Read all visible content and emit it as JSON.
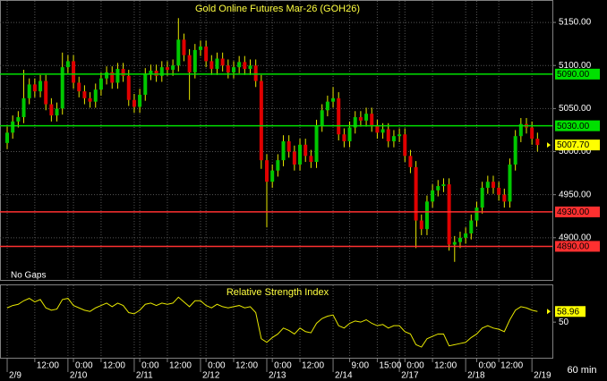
{
  "chart_data": [
    {
      "type": "candlestick",
      "title": "Gold Online Futures Mar-26 (GOH26)",
      "note": "No Gaps",
      "up_color": "#00c800",
      "down_color": "#e00000",
      "wick_color": "#e8e800",
      "xlim": [
        -1.3,
        98.7
      ],
      "ylim": [
        4851,
        5175
      ],
      "yticks": [
        {
          "value": 4900,
          "label": "4900.00"
        },
        {
          "value": 4950,
          "label": "4950.00"
        },
        {
          "value": 5000,
          "label": "5000.00"
        },
        {
          "value": 5050,
          "label": "5050.00"
        },
        {
          "value": 5100,
          "label": "5100.00"
        },
        {
          "value": 5150,
          "label": "5150.00"
        }
      ],
      "grid": true,
      "levels": [
        {
          "value": 5090,
          "label": "5090.00",
          "color": "#00e000"
        },
        {
          "value": 5030,
          "label": "5030.00",
          "color": "#00e000"
        },
        {
          "value": 4930,
          "label": "4930.00",
          "color": "#ff3030"
        },
        {
          "value": 4890,
          "label": "4890.00",
          "color": "#ff3030"
        }
      ],
      "current": {
        "value": 5007.7,
        "label": "5007.70",
        "color": "#ffff00"
      },
      "open": [
        5010,
        5022,
        5035,
        5040,
        5062,
        5078,
        5070,
        5082,
        5055,
        5042,
        5050,
        5098,
        5105,
        5080,
        5070,
        5062,
        5058,
        5072,
        5085,
        5092,
        5080,
        5096,
        5088,
        5060,
        5052,
        5066,
        5090,
        5094,
        5088,
        5098,
        5095,
        5100,
        5130,
        5112,
        5092,
        5118,
        5122,
        5105,
        5096,
        5108,
        5100,
        5092,
        5098,
        5104,
        5096,
        5100,
        5082,
        4990,
        4965,
        4978,
        4990,
        5012,
        5000,
        4985,
        5008,
        4995,
        4988,
        5030,
        5048,
        5058,
        5062,
        5020,
        5012,
        5028,
        5040,
        5036,
        5044,
        5030,
        5022,
        5026,
        5012,
        5018,
        5020,
        4995,
        4982,
        4920,
        4910,
        4942,
        4955,
        4960,
        4962,
        4892,
        4895,
        4900,
        4905,
        4920,
        4935,
        4958,
        4965,
        4958,
        4950,
        4942,
        4985,
        5018,
        5032,
        5028,
        5015
      ],
      "high": [
        5029,
        5042,
        5047,
        5095,
        5085,
        5085,
        5089,
        5089,
        5062,
        5057,
        5115,
        5112,
        5112,
        5087,
        5077,
        5069,
        5079,
        5092,
        5099,
        5099,
        5103,
        5103,
        5095,
        5067,
        5073,
        5097,
        5101,
        5101,
        5105,
        5105,
        5107,
        5155,
        5137,
        5119,
        5125,
        5129,
        5129,
        5112,
        5115,
        5115,
        5107,
        5105,
        5111,
        5111,
        5107,
        5107,
        5089,
        4997,
        4985,
        4997,
        5019,
        5019,
        5007,
        5015,
        5015,
        5002,
        5037,
        5055,
        5065,
        5075,
        5069,
        5027,
        5035,
        5047,
        5047,
        5051,
        5051,
        5037,
        5033,
        5033,
        5025,
        5027,
        5027,
        5002,
        4989,
        4927,
        4949,
        4962,
        4967,
        4969,
        4969,
        4902,
        4907,
        4912,
        4927,
        4942,
        4965,
        4972,
        4972,
        4965,
        4957,
        4992,
        5025,
        5039,
        5039,
        5035,
        5022
      ],
      "low": [
        5003,
        5015,
        5028,
        5033,
        5055,
        5063,
        5063,
        5048,
        5035,
        5035,
        5043,
        5091,
        5073,
        5063,
        5055,
        5051,
        5051,
        5065,
        5078,
        5073,
        5073,
        5081,
        5053,
        5045,
        5045,
        5059,
        5083,
        5081,
        5081,
        5088,
        5088,
        5093,
        5105,
        5060,
        5085,
        5111,
        5098,
        5089,
        5089,
        5093,
        5085,
        5085,
        5091,
        5089,
        5089,
        5075,
        4980,
        4912,
        4958,
        4971,
        4983,
        4993,
        4978,
        4978,
        4988,
        4981,
        4981,
        5023,
        5041,
        5051,
        5013,
        5005,
        5005,
        5021,
        5029,
        5029,
        5023,
        5015,
        5015,
        5005,
        5005,
        5011,
        4988,
        4975,
        4888,
        4903,
        4903,
        4935,
        4948,
        4953,
        4885,
        4872,
        4888,
        4893,
        4898,
        4913,
        4928,
        4951,
        4951,
        4943,
        4935,
        4935,
        4978,
        5011,
        5021,
        5008,
        5000
      ],
      "close": [
        5022,
        5035,
        5040,
        5062,
        5078,
        5070,
        5082,
        5055,
        5042,
        5050,
        5098,
        5105,
        5080,
        5070,
        5062,
        5058,
        5072,
        5085,
        5092,
        5080,
        5096,
        5088,
        5060,
        5052,
        5066,
        5090,
        5094,
        5088,
        5098,
        5095,
        5100,
        5130,
        5112,
        5092,
        5118,
        5122,
        5105,
        5096,
        5108,
        5100,
        5092,
        5098,
        5104,
        5096,
        5100,
        5082,
        4990,
        4965,
        4978,
        4990,
        5012,
        5000,
        4985,
        5008,
        4995,
        4988,
        5030,
        5048,
        5058,
        5062,
        5020,
        5012,
        5028,
        5040,
        5036,
        5044,
        5030,
        5022,
        5026,
        5012,
        5018,
        5020,
        4995,
        4982,
        4920,
        4910,
        4942,
        4955,
        4960,
        4962,
        4892,
        4895,
        4900,
        4905,
        4920,
        4935,
        4958,
        4965,
        4958,
        4950,
        4942,
        4985,
        5018,
        5032,
        5028,
        5015,
        5007.7
      ]
    },
    {
      "type": "line",
      "title": "Relative Strength Index",
      "color": "#e8e800",
      "interval": "60 min",
      "xlim": [
        -1.3,
        98.7
      ],
      "ylim": [
        20,
        81
      ],
      "yticks": [
        50
      ],
      "last_value": {
        "value": 58.96,
        "label": "58.96",
        "color": "#ffff00"
      },
      "xticks": [
        {
          "value": 5,
          "label": "12:00"
        },
        {
          "value": 12,
          "label": "0:00"
        },
        {
          "value": 17,
          "label": "12:00"
        },
        {
          "value": 24,
          "label": "0:00"
        },
        {
          "value": 29,
          "label": "12:00"
        },
        {
          "value": 36,
          "label": "0:00"
        },
        {
          "value": 41,
          "label": "12:00"
        },
        {
          "value": 48,
          "label": "0:00"
        },
        {
          "value": 53,
          "label": "12:00"
        },
        {
          "value": 62,
          "label": "9:00"
        },
        {
          "value": 67,
          "label": "15:00"
        },
        {
          "value": 72,
          "label": "0:00"
        },
        {
          "value": 77,
          "label": "12:00"
        },
        {
          "value": 85,
          "label": "0:00"
        },
        {
          "value": 89,
          "label": "12:00"
        }
      ],
      "date_ticks": [
        {
          "value": 0,
          "label": "2/9"
        },
        {
          "value": 11,
          "label": "2/10"
        },
        {
          "value": 23,
          "label": "2/11"
        },
        {
          "value": 35,
          "label": "2/12"
        },
        {
          "value": 47,
          "label": "2/13"
        },
        {
          "value": 59,
          "label": "2/14"
        },
        {
          "value": 71,
          "label": "2/17"
        },
        {
          "value": 83,
          "label": "2/18"
        },
        {
          "value": 95,
          "label": "2/19"
        }
      ],
      "values": [
        62,
        64,
        65,
        68,
        70,
        67,
        69,
        62,
        60,
        61,
        69,
        70,
        64,
        62,
        60,
        59,
        62,
        64,
        66,
        63,
        66,
        64,
        58,
        57,
        60,
        65,
        66,
        64,
        66,
        65,
        66,
        71,
        67,
        63,
        68,
        68,
        64,
        62,
        65,
        63,
        62,
        63,
        64,
        62,
        63,
        58,
        36,
        33,
        37,
        40,
        45,
        43,
        40,
        45,
        42,
        41,
        49,
        53,
        55,
        56,
        47,
        45,
        49,
        51,
        50,
        52,
        49,
        47,
        48,
        45,
        47,
        47,
        42,
        40,
        31,
        29,
        36,
        38,
        40,
        40,
        30,
        31,
        32,
        33,
        37,
        40,
        45,
        47,
        45,
        44,
        42,
        52,
        60,
        63,
        62,
        60,
        58.96
      ]
    }
  ]
}
